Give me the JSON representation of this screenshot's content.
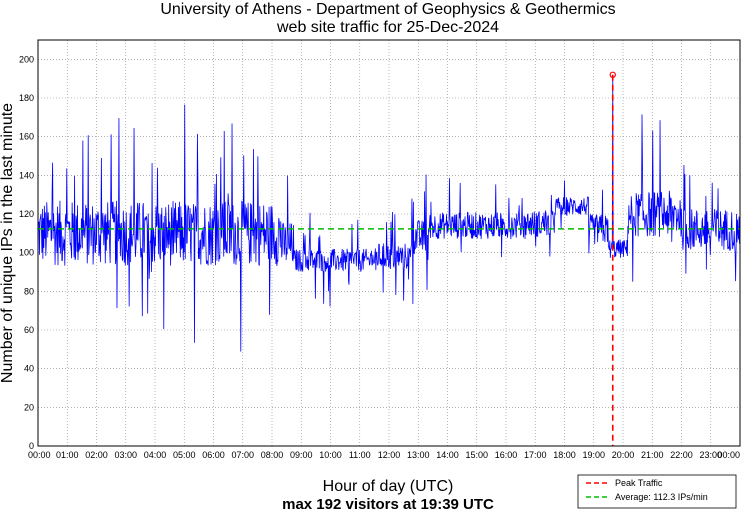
{
  "chart_data": {
    "type": "line",
    "title": [
      "University of Athens - Department of Geophysics & Geothermics",
      "web site traffic for 25-Dec-2024"
    ],
    "xlabel": "Hour of day (UTC)",
    "ylabel": "Number of unique IPs in the last minute",
    "footer": "max 192 visitors at 19:39 UTC",
    "ylim": [
      0,
      210
    ],
    "yticks": [
      0,
      20,
      40,
      60,
      80,
      100,
      120,
      140,
      160,
      180,
      200
    ],
    "xlim_minutes": [
      0,
      1440
    ],
    "xtick_labels": [
      "00:00",
      "01:00",
      "02:00",
      "03:00",
      "04:00",
      "05:00",
      "06:00",
      "07:00",
      "08:00",
      "09:00",
      "10:00",
      "11:00",
      "12:00",
      "13:00",
      "14:00",
      "15:00",
      "16:00",
      "17:00",
      "18:00",
      "19:00",
      "20:00",
      "21:00",
      "22:00",
      "23:00",
      "00:00"
    ],
    "series": [
      {
        "name": "Unique IPs",
        "color": "#0000ff",
        "segments_minute_level": [
          {
            "from_min": 0,
            "to_min": 500,
            "level": 110,
            "spread": 17
          },
          {
            "from_min": 500,
            "to_min": 525,
            "level": 104,
            "spread": 12
          },
          {
            "from_min": 525,
            "to_min": 690,
            "level": 96,
            "spread": 6
          },
          {
            "from_min": 690,
            "to_min": 765,
            "level": 98,
            "spread": 7
          },
          {
            "from_min": 765,
            "to_min": 800,
            "level": 108,
            "spread": 9
          },
          {
            "from_min": 800,
            "to_min": 1000,
            "level": 114,
            "spread": 7
          },
          {
            "from_min": 1000,
            "to_min": 1060,
            "level": 115,
            "spread": 7
          },
          {
            "from_min": 1060,
            "to_min": 1130,
            "level": 124,
            "spread": 5
          },
          {
            "from_min": 1130,
            "to_min": 1170,
            "level": 112,
            "spread": 8
          },
          {
            "from_min": 1170,
            "to_min": 1210,
            "level": 102,
            "spread": 5
          },
          {
            "from_min": 1210,
            "to_min": 1320,
            "level": 120,
            "spread": 12
          },
          {
            "from_min": 1320,
            "to_min": 1440,
            "level": 112,
            "spread": 11
          }
        ]
      }
    ],
    "peak": {
      "label": "Peak Traffic",
      "minute": 1179,
      "value": 192,
      "color": "#ff0000"
    },
    "average": {
      "label": "Average: 112.3 IPs/min",
      "value": 112.3,
      "color": "#00bb00"
    }
  }
}
